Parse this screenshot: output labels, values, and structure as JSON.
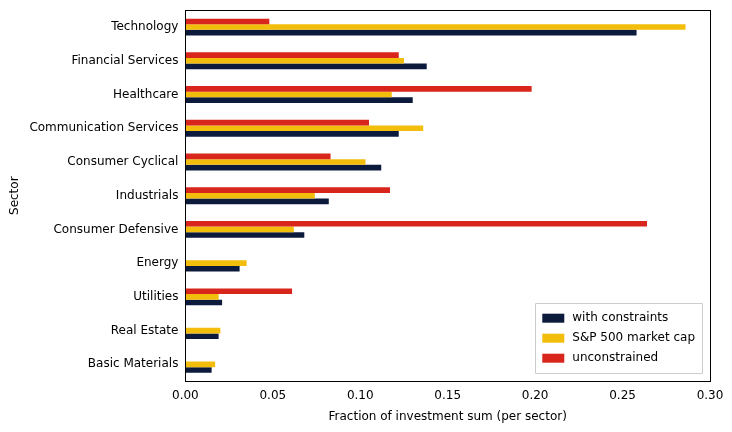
{
  "chart_data": {
    "type": "bar",
    "orientation": "horizontal",
    "x_label": "Fraction of investment sum (per sector)",
    "y_label": "Sector",
    "categories": [
      "Technology",
      "Financial Services",
      "Healthcare",
      "Communication Services",
      "Consumer Cyclical",
      "Industrials",
      "Consumer Defensive",
      "Energy",
      "Utilities",
      "Real Estate",
      "Basic Materials"
    ],
    "series": [
      {
        "name": "with constraints",
        "color": "#0c1a3c",
        "values": [
          0.258,
          0.138,
          0.13,
          0.122,
          0.112,
          0.082,
          0.068,
          0.031,
          0.021,
          0.019,
          0.015
        ]
      },
      {
        "name": "S&P 500 market cap",
        "color": "#f2bd0b",
        "values": [
          0.286,
          0.125,
          0.118,
          0.136,
          0.103,
          0.074,
          0.062,
          0.035,
          0.019,
          0.02,
          0.017
        ]
      },
      {
        "name": "unconstrained",
        "color": "#d9261c",
        "values": [
          0.048,
          0.122,
          0.198,
          0.105,
          0.083,
          0.117,
          0.264,
          0,
          0.061,
          0,
          0
        ]
      }
    ],
    "xlim": [
      0,
      0.3
    ],
    "xticks": [
      {
        "value": 0,
        "label": "0.00"
      },
      {
        "value": 0.05,
        "label": "0.05"
      },
      {
        "value": 0.1,
        "label": "0.10"
      },
      {
        "value": 0.15,
        "label": "0.15"
      },
      {
        "value": 0.2,
        "label": "0.20"
      },
      {
        "value": 0.25,
        "label": "0.25"
      },
      {
        "value": 0.3,
        "label": "0.30"
      }
    ],
    "grid": false,
    "legend": "lower right"
  }
}
